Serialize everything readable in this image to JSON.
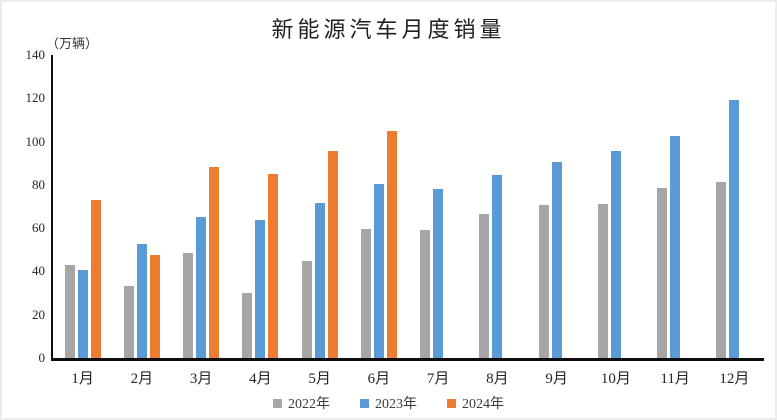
{
  "chart_data": {
    "type": "bar",
    "title": "新能源汽车月度销量",
    "unit_label": "（万辆）",
    "categories": [
      "1月",
      "2月",
      "3月",
      "4月",
      "5月",
      "6月",
      "7月",
      "8月",
      "9月",
      "10月",
      "11月",
      "12月"
    ],
    "series": [
      {
        "name": "2022年",
        "color": "#A6A6A6",
        "values": [
          43.1,
          33.4,
          48.4,
          29.9,
          44.7,
          59.6,
          59.3,
          66.6,
          70.8,
          71.4,
          78.6,
          81.4
        ]
      },
      {
        "name": "2023年",
        "color": "#5B9BD5",
        "values": [
          40.8,
          52.5,
          65.3,
          63.6,
          71.7,
          80.6,
          78.0,
          84.6,
          90.4,
          95.6,
          102.6,
          119.1
        ]
      },
      {
        "name": "2024年",
        "color": "#ED7D31",
        "values": [
          72.9,
          47.7,
          88.3,
          85.0,
          95.5,
          104.9,
          null,
          null,
          null,
          null,
          null,
          null
        ]
      }
    ],
    "ylim": [
      0,
      140
    ],
    "yticks": [
      0,
      20,
      40,
      60,
      80,
      100,
      120,
      140
    ],
    "ytick_labels": [
      "0",
      "20",
      "40",
      "60",
      "80",
      "100",
      "120",
      "140"
    ],
    "grid": false,
    "legend_position": "bottom"
  }
}
